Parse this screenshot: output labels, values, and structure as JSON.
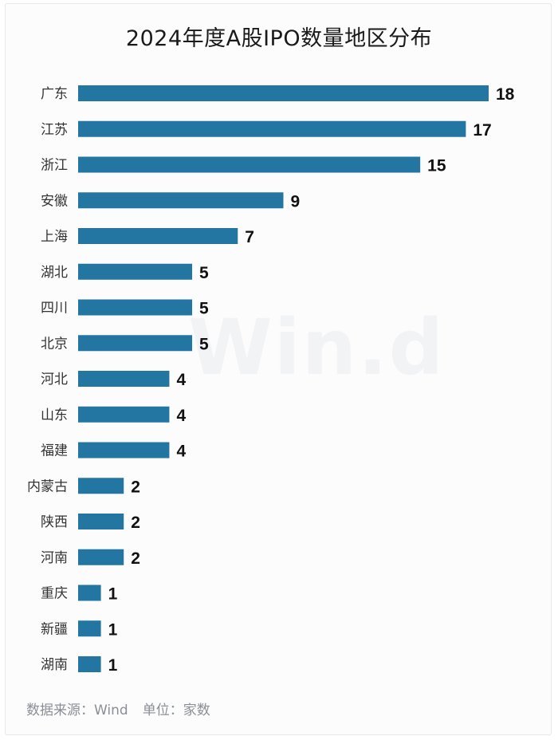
{
  "chart_data": {
    "type": "bar",
    "orientation": "horizontal",
    "title": "2024年度A股IPO数量地区分布",
    "categories": [
      "广东",
      "江苏",
      "浙江",
      "安徽",
      "上海",
      "湖北",
      "四川",
      "北京",
      "河北",
      "山东",
      "福建",
      "内蒙古",
      "陕西",
      "河南",
      "重庆",
      "新疆",
      "湖南"
    ],
    "values": [
      18,
      17,
      15,
      9,
      7,
      5,
      5,
      5,
      4,
      4,
      4,
      2,
      2,
      2,
      1,
      1,
      1
    ],
    "xlim": [
      0,
      18
    ],
    "grid": false,
    "bar_color": "#2476a2"
  },
  "watermark": "Win.d",
  "source": {
    "data_source": "数据来源：Wind",
    "unit": "单位：家数"
  }
}
